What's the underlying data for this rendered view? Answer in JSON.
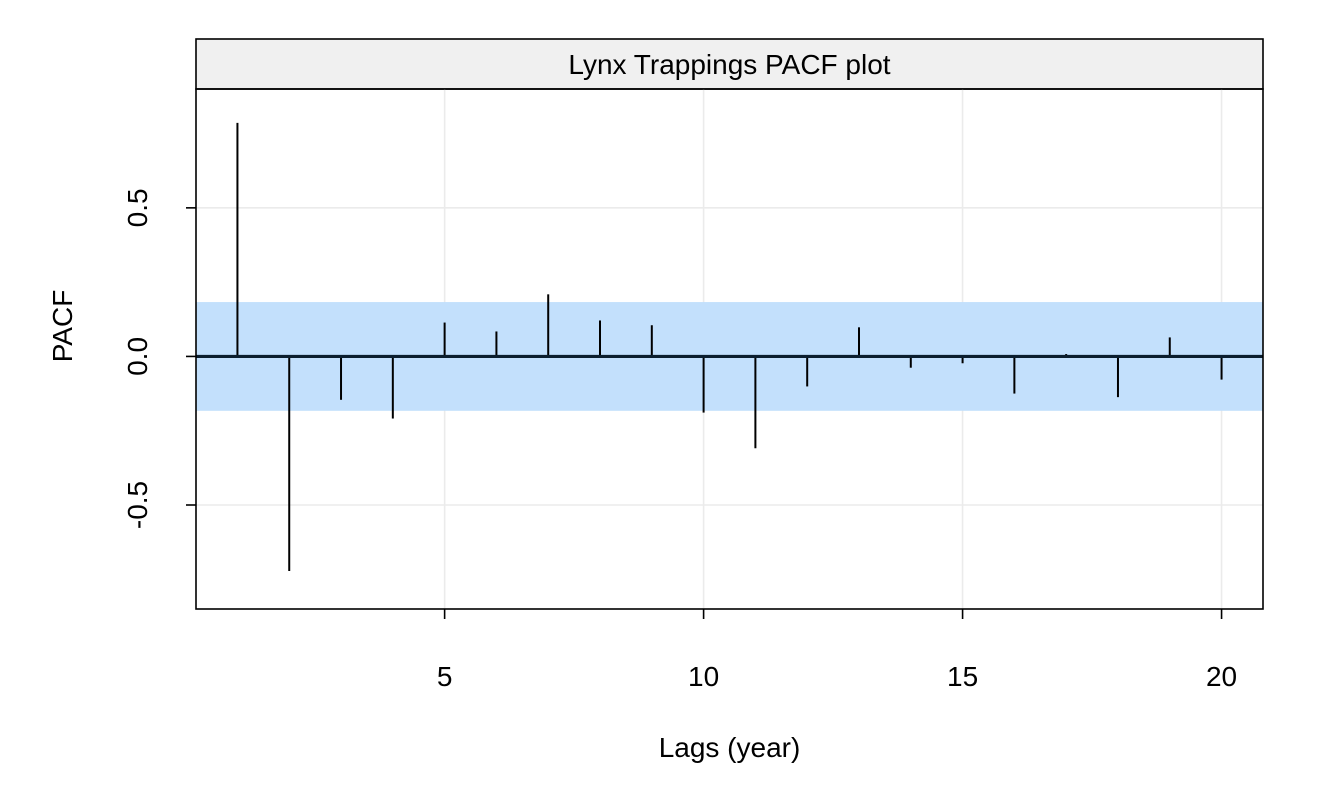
{
  "chart_data": {
    "type": "bar",
    "title": "Lynx Trappings PACF plot",
    "xlabel": "Lags (year)",
    "ylabel": "PACF",
    "xlim": [
      0.2,
      20.8
    ],
    "ylim": [
      -0.85,
      0.9
    ],
    "x_ticks": [
      5,
      10,
      15,
      20
    ],
    "x_tick_labels": [
      "5",
      "10",
      "15",
      "20"
    ],
    "y_ticks": [
      -0.5,
      0.0,
      0.5
    ],
    "y_tick_labels": [
      "-0.5",
      "0.0",
      "0.5"
    ],
    "grid": true,
    "confidence_band": [
      -0.183,
      0.183
    ],
    "lags": [
      1,
      2,
      3,
      4,
      5,
      6,
      7,
      8,
      9,
      10,
      11,
      12,
      13,
      14,
      15,
      16,
      17,
      18,
      19,
      20
    ],
    "values": [
      0.786,
      -0.722,
      -0.146,
      -0.209,
      0.114,
      0.084,
      0.209,
      0.121,
      0.105,
      -0.189,
      -0.309,
      -0.101,
      0.098,
      -0.038,
      -0.023,
      -0.125,
      0.008,
      -0.137,
      0.064,
      -0.078
    ]
  },
  "colors": {
    "band": "#c3e0fc",
    "spikes": "#000000",
    "zero_line": "#0b1e2e",
    "grid": "#ebebeb",
    "strip": "#f0f0f0",
    "frame": "#000000"
  }
}
